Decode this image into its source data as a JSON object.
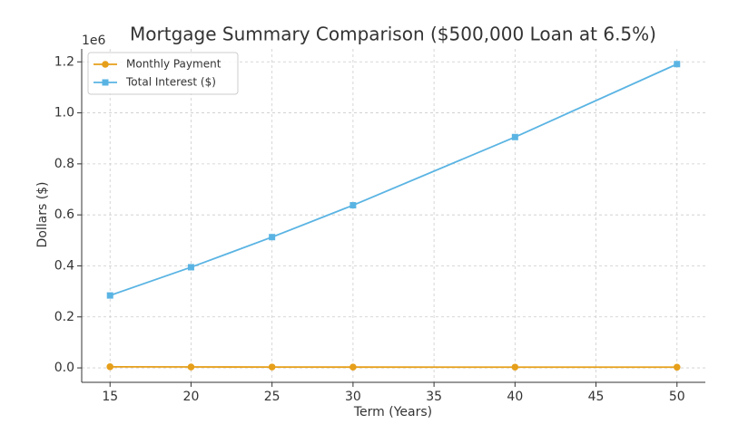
{
  "chart_data": {
    "type": "line",
    "title": "Mortgage Summary Comparison ($500,000 Loan at 6.5%)",
    "xlabel": "Term (Years)",
    "ylabel": "Dollars ($)",
    "y_offset_label": "1e6",
    "x": [
      15,
      20,
      25,
      30,
      40,
      50
    ],
    "series": [
      {
        "name": "Monthly Payment",
        "color": "#e69f1a",
        "marker": "circle",
        "values": [
          4356,
          3728,
          3376,
          3160,
          2927,
          2819
        ]
      },
      {
        "name": "Total Interest ($)",
        "color": "#5ab4e3",
        "marker": "square",
        "values": [
          284000,
          394700,
          512800,
          637700,
          905100,
          1191200
        ]
      }
    ],
    "xlim": [
      13.25,
      51.75
    ],
    "xticks": [
      15,
      20,
      25,
      30,
      35,
      40,
      45,
      50
    ],
    "ylim": [
      -56600,
      1250700
    ],
    "yticks": [
      {
        "value": 0,
        "label": "0.0"
      },
      {
        "value": 200000,
        "label": "0.2"
      },
      {
        "value": 400000,
        "label": "0.4"
      },
      {
        "value": 600000,
        "label": "0.6"
      },
      {
        "value": 800000,
        "label": "0.8"
      },
      {
        "value": 1000000,
        "label": "1.0"
      },
      {
        "value": 1200000,
        "label": "1.2"
      }
    ],
    "grid": true,
    "legend": "upper-left"
  }
}
